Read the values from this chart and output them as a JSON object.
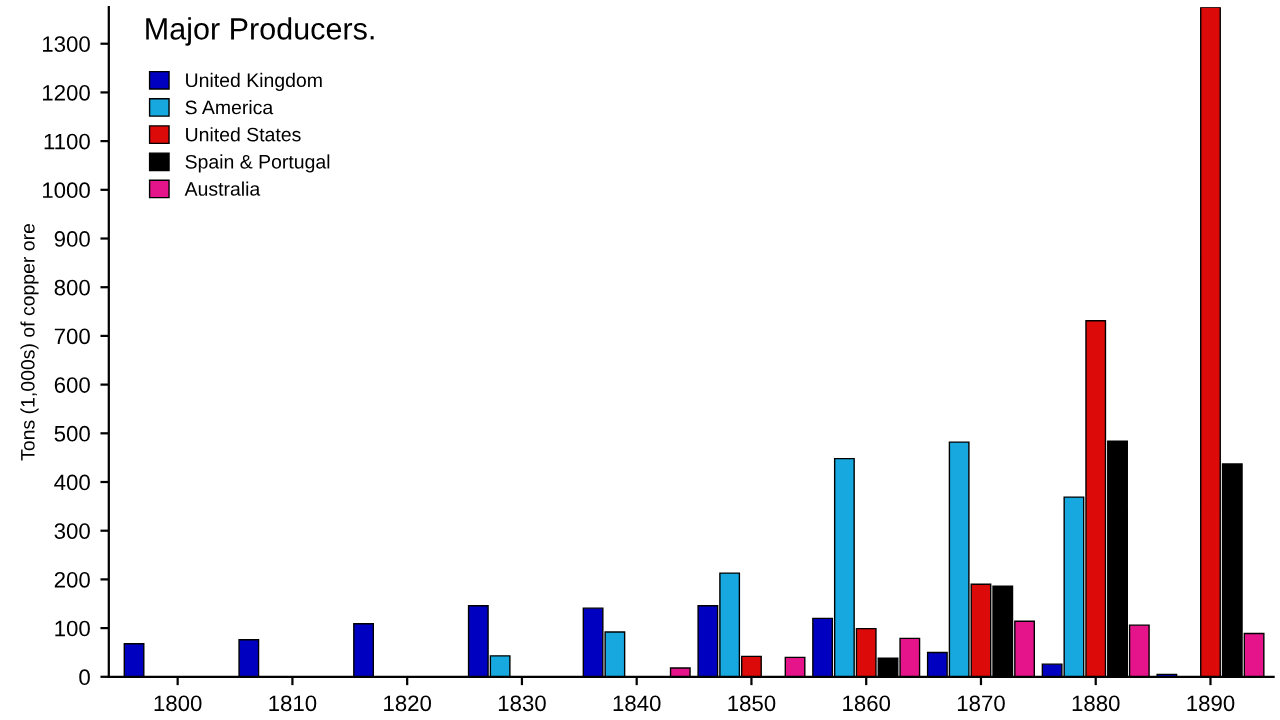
{
  "chart_data": {
    "type": "bar",
    "title": "Major Producers.",
    "ylabel": "Tons (1,000s) of copper ore",
    "categories": [
      "1800",
      "1810",
      "1820",
      "1830",
      "1840",
      "1850",
      "1860",
      "1870",
      "1880",
      "1890"
    ],
    "series": [
      {
        "name": "United Kingdom",
        "color": "#0000c0",
        "values": [
          68,
          76,
          109,
          146,
          141,
          146,
          120,
          50,
          26,
          5
        ]
      },
      {
        "name": "S America",
        "color": "#17a8e0",
        "values": [
          null,
          null,
          null,
          43,
          92,
          213,
          448,
          482,
          369,
          null
        ]
      },
      {
        "name": "United States",
        "color": "#dd0a0a",
        "values": [
          null,
          null,
          null,
          null,
          null,
          42,
          99,
          190,
          731,
          1375
        ]
      },
      {
        "name": "Spain & Portugal",
        "color": "#000000",
        "values": [
          null,
          null,
          null,
          null,
          null,
          null,
          38,
          186,
          484,
          437
        ]
      },
      {
        "name": "Australia",
        "color": "#e5148a",
        "values": [
          null,
          null,
          null,
          null,
          18,
          40,
          79,
          114,
          106,
          89
        ]
      }
    ],
    "ylim": [
      0,
      1375
    ],
    "yticks": [
      0,
      100,
      200,
      300,
      400,
      500,
      600,
      700,
      800,
      900,
      1000,
      1100,
      1200,
      1300
    ],
    "grid": false,
    "legend": "top left"
  }
}
